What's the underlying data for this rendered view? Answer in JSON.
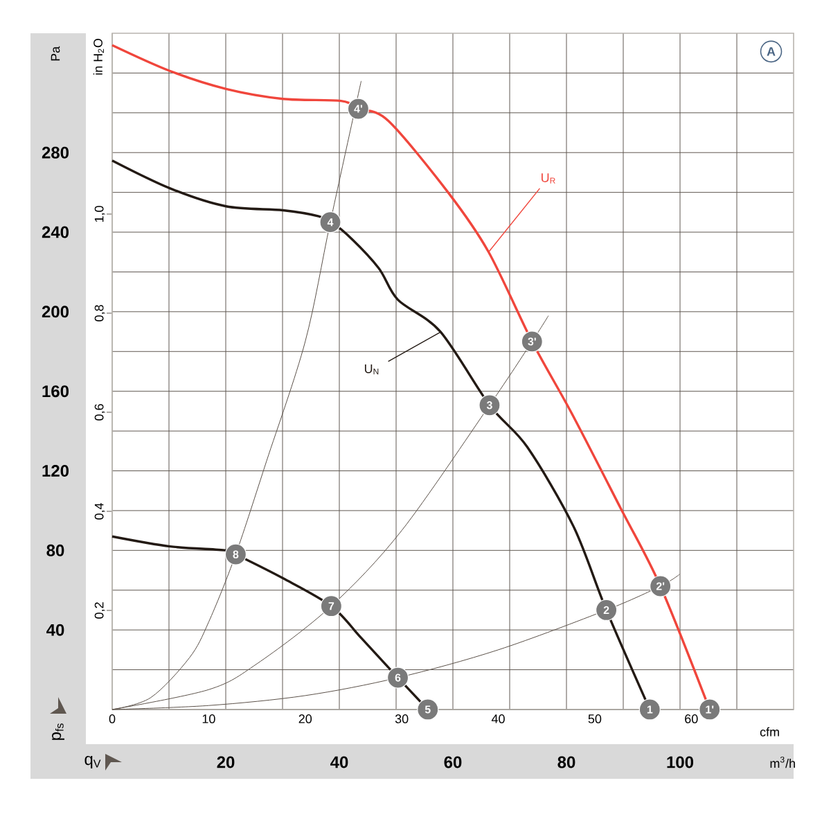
{
  "chart_data": {
    "type": "line",
    "xlabel": "cfm",
    "ylabel": "Pa",
    "y2label": "in H$_{2}$O",
    "x2label": "m$^{3}$/h",
    "xlim": [
      0,
      70.6
    ],
    "ylim": [
      0,
      340
    ],
    "y2lim": [
      0,
      1.365
    ],
    "x2lim": [
      0,
      120
    ],
    "xticks": [
      0,
      10,
      20,
      30,
      40,
      50,
      60
    ],
    "yticks": [
      {
        "value": 20,
        "label": null
      },
      40,
      {
        "value": 60,
        "label": null
      },
      80,
      {
        "value": 100,
        "label": null
      },
      120,
      {
        "value": 140,
        "label": null
      },
      160,
      {
        "value": 180,
        "label": null
      },
      200,
      {
        "value": 220,
        "label": null
      },
      240,
      {
        "value": 260,
        "label": null
      },
      280,
      {
        "value": 300,
        "label": null
      },
      {
        "value": 320,
        "label": null
      }
    ],
    "y2ticks": [
      {
        "value": 0.2,
        "label": "0,2"
      },
      {
        "value": 0.4,
        "label": "0,4"
      },
      {
        "value": 0.6,
        "label": "0,6"
      },
      {
        "value": 0.8,
        "label": "0,8"
      },
      {
        "value": 1.0,
        "label": "1,0"
      }
    ],
    "x2ticks": [
      {
        "value": 10,
        "label": null
      },
      20,
      {
        "value": 30,
        "label": null
      },
      40,
      {
        "value": 50,
        "label": null
      },
      60,
      {
        "value": 70,
        "label": null
      },
      80,
      {
        "value": 90,
        "label": null
      },
      100,
      {
        "value": 110,
        "label": null
      }
    ],
    "grid": true,
    "marker": "none",
    "line_style": "solid",
    "series": [
      {
        "name": "U$_{R}$",
        "color": "#f0463c",
        "x": [
          0,
          6.0,
          11.8,
          17.7,
          23.7,
          25.5,
          28.6,
          34.8,
          39.0,
          43.5,
          47.6,
          52.7,
          56.8,
          61.9
        ],
        "values": [
          334,
          321,
          312,
          307,
          306,
          302,
          296,
          260,
          230,
          185,
          149,
          101,
          62,
          0
        ]
      },
      {
        "name": "U$_{N}$",
        "color": "#231a14",
        "x": [
          0,
          6.0,
          11.8,
          17.7,
          21.4,
          22.6,
          24.3,
          27.6,
          29.6,
          34.0,
          39.1,
          43.0,
          47.8,
          51.2,
          55.7
        ],
        "values": [
          276,
          262,
          253,
          251,
          248,
          245,
          239,
          222,
          206,
          190,
          153,
          132,
          92,
          50,
          0
        ]
      },
      {
        "color": "#231a14",
        "x": [
          0,
          6.0,
          11.8,
          12.8,
          17.7,
          22.7,
          25.8,
          29.6,
          32.7
        ],
        "values": [
          87,
          82,
          80,
          78,
          66,
          52,
          36,
          16,
          0
        ]
      },
      {
        "color": "#5a5048",
        "x": [
          0,
          4,
          8,
          10,
          12.8,
          16,
          20,
          22.6,
          25.8
        ],
        "values": [
          0,
          6,
          26,
          44,
          78,
          125,
          185,
          245,
          316
        ]
      },
      {
        "color": "#5a5048",
        "x": [
          0,
          10,
          15,
          22.7,
          30,
          39.1,
          43.5,
          45.2
        ],
        "values": [
          0,
          10,
          23,
          52,
          90,
          153,
          185,
          198
        ]
      },
      {
        "color": "#5a5048",
        "x": [
          0,
          10,
          20,
          29.6,
          40,
          51.2,
          56.8,
          58.8
        ],
        "values": [
          0,
          2,
          7,
          16,
          30,
          50,
          62,
          68
        ]
      }
    ],
    "annotations": [
      {
        "text": "1",
        "x": 55.7,
        "y": 0
      },
      {
        "text": "2",
        "x": 51.2,
        "y": 50
      },
      {
        "text": "3",
        "x": 39.1,
        "y": 153
      },
      {
        "text": "4",
        "x": 22.6,
        "y": 245
      },
      {
        "text": "5",
        "x": 32.7,
        "y": 0
      },
      {
        "text": "6",
        "x": 29.6,
        "y": 16
      },
      {
        "text": "7",
        "x": 22.7,
        "y": 52
      },
      {
        "text": "8",
        "x": 12.8,
        "y": 78
      },
      {
        "text": "1'",
        "x": 61.9,
        "y": 0
      },
      {
        "text": "2'",
        "x": 56.8,
        "y": 62
      },
      {
        "text": "3'",
        "x": 43.5,
        "y": 185
      },
      {
        "text": "4'",
        "x": 25.5,
        "y": 302
      },
      "A",
      "p$_{fs}$",
      "q$_{V}$"
    ]
  }
}
